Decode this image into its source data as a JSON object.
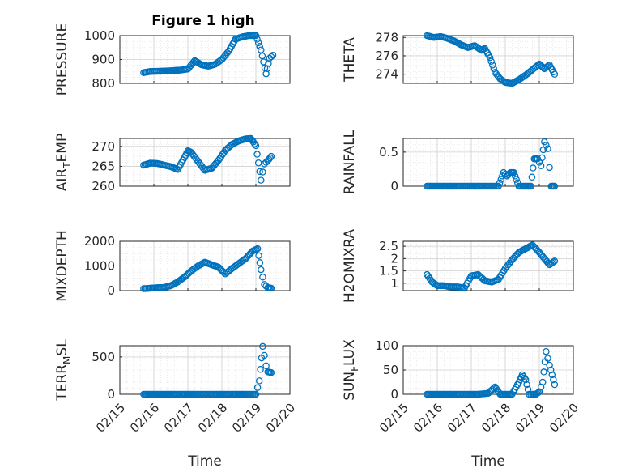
{
  "figure": {
    "title": "Figure 1 high",
    "marker_color": "#0072BD"
  },
  "chart_data": [
    {
      "type": "scatter",
      "ylabel": "PRESSURE",
      "xlabel": "",
      "title": "Figure 1 high",
      "ylim": [
        800,
        1000
      ],
      "yticks": [
        800,
        900,
        1000
      ],
      "ytick_labels": [
        "800",
        "900",
        "1000"
      ],
      "xlim": [
        0,
        5
      ],
      "xticks": [
        0,
        1,
        2,
        3,
        4,
        5
      ],
      "xtick_labels": [
        "",
        "",
        "",
        "",
        "",
        ""
      ],
      "grid": true,
      "x": [
        0.7,
        0.9,
        1.2,
        1.5,
        1.8,
        2.0,
        2.2,
        2.4,
        2.6,
        2.8,
        3.0,
        3.2,
        3.4,
        3.6,
        3.8,
        4.0,
        4.15,
        4.3,
        4.4,
        4.5
      ],
      "y": [
        845,
        850,
        851,
        853,
        856,
        860,
        895,
        878,
        872,
        880,
        900,
        935,
        985,
        995,
        1000,
        1000,
        940,
        840,
        905,
        918
      ]
    },
    {
      "type": "scatter",
      "ylabel": "THETA",
      "xlabel": "",
      "ylim": [
        273,
        278.2
      ],
      "yticks": [
        274,
        276,
        278
      ],
      "ytick_labels": [
        "274",
        "276",
        "278"
      ],
      "xlim": [
        0,
        5
      ],
      "xticks": [
        0,
        1,
        2,
        3,
        4,
        5
      ],
      "xtick_labels": [
        "",
        "",
        "",
        "",
        "",
        ""
      ],
      "grid": true,
      "x": [
        0.7,
        0.9,
        1.1,
        1.3,
        1.5,
        1.7,
        1.9,
        2.1,
        2.3,
        2.4,
        2.55,
        2.7,
        2.85,
        3.0,
        3.2,
        3.4,
        3.6,
        3.8,
        4.0,
        4.15,
        4.3,
        4.45
      ],
      "y": [
        278.2,
        278,
        278.1,
        277.9,
        277.6,
        277.2,
        276.9,
        277.1,
        276.6,
        276.8,
        275.8,
        274.2,
        273.5,
        273.1,
        273.0,
        273.4,
        273.9,
        274.5,
        275.1,
        274.6,
        275.0,
        274.0
      ]
    },
    {
      "type": "scatter",
      "ylabel": "AIR_TEMP",
      "ylabel_main": "AIR",
      "ylabel_sub": "T",
      "ylabel_rest": "EMP",
      "xlabel": "",
      "ylim": [
        260,
        272
      ],
      "yticks": [
        260,
        265,
        270
      ],
      "ytick_labels": [
        "260",
        "265",
        "270"
      ],
      "xlim": [
        0,
        5
      ],
      "xticks": [
        0,
        1,
        2,
        3,
        4,
        5
      ],
      "xtick_labels": [
        "",
        "",
        "",
        "",
        "",
        ""
      ],
      "grid": true,
      "x": [
        0.7,
        0.9,
        1.1,
        1.3,
        1.5,
        1.7,
        1.9,
        2.0,
        2.1,
        2.3,
        2.5,
        2.7,
        2.9,
        3.1,
        3.3,
        3.5,
        3.7,
        3.85,
        4.0,
        4.15,
        4.25,
        4.35,
        4.45
      ],
      "y": [
        265.3,
        265.8,
        265.7,
        265.3,
        264.9,
        264.2,
        267.2,
        268.9,
        268.5,
        266.2,
        264.0,
        264.5,
        266.5,
        269.0,
        270.5,
        271.4,
        271.9,
        272.0,
        270.2,
        261.5,
        265.6,
        266.4,
        267.5
      ]
    },
    {
      "type": "scatter",
      "ylabel": "RAINFALL",
      "xlabel": "",
      "ylim": [
        0,
        0.7
      ],
      "yticks": [
        0,
        0.5
      ],
      "ytick_labels": [
        "0",
        "0.5"
      ],
      "xlim": [
        0,
        5
      ],
      "xticks": [
        0,
        1,
        2,
        3,
        4,
        5
      ],
      "xtick_labels": [
        "",
        "",
        "",
        "",
        "",
        ""
      ],
      "grid": true,
      "x": [
        0.7,
        1.0,
        1.3,
        1.6,
        1.9,
        2.2,
        2.5,
        2.8,
        2.95,
        3.05,
        3.15,
        3.25,
        3.4,
        3.6,
        3.75,
        3.85,
        3.95,
        4.05,
        4.15,
        4.25,
        4.35,
        4.45
      ],
      "y": [
        0,
        0,
        0,
        0,
        0,
        0,
        0,
        0,
        0.2,
        0.15,
        0.2,
        0.2,
        0,
        0,
        0,
        0.4,
        0.4,
        0.3,
        0.65,
        0.55,
        0,
        0
      ]
    },
    {
      "type": "scatter",
      "ylabel": "MIXDEPTH",
      "xlabel": "",
      "ylim": [
        0,
        2000
      ],
      "yticks": [
        0,
        1000,
        2000
      ],
      "ytick_labels": [
        "0",
        "1000",
        "2000"
      ],
      "xlim": [
        0,
        5
      ],
      "xticks": [
        0,
        1,
        2,
        3,
        4,
        5
      ],
      "xtick_labels": [
        "",
        "",
        "",
        "",
        "",
        ""
      ],
      "grid": true,
      "x": [
        0.7,
        0.9,
        1.1,
        1.3,
        1.5,
        1.7,
        1.9,
        2.1,
        2.3,
        2.5,
        2.7,
        2.9,
        3.1,
        3.3,
        3.5,
        3.7,
        3.9,
        4.05,
        4.15,
        4.25,
        4.35,
        4.45
      ],
      "y": [
        80,
        100,
        120,
        130,
        200,
        350,
        550,
        800,
        1000,
        1150,
        1050,
        950,
        680,
        900,
        1100,
        1300,
        1600,
        1700,
        850,
        250,
        120,
        100
      ]
    },
    {
      "type": "scatter",
      "ylabel": "H2OMIXRA",
      "xlabel": "",
      "ylim": [
        0.7,
        2.7
      ],
      "yticks": [
        1,
        1.5,
        2,
        2.5
      ],
      "ytick_labels": [
        "1",
        "1.5",
        "2",
        "2.5"
      ],
      "xlim": [
        0,
        5
      ],
      "xticks": [
        0,
        1,
        2,
        3,
        4,
        5
      ],
      "xtick_labels": [
        "",
        "",
        "",
        "",
        "",
        ""
      ],
      "grid": true,
      "x": [
        0.7,
        0.85,
        1.0,
        1.2,
        1.4,
        1.6,
        1.8,
        2.0,
        2.2,
        2.4,
        2.6,
        2.8,
        3.0,
        3.2,
        3.4,
        3.6,
        3.8,
        4.0,
        4.15,
        4.3,
        4.45
      ],
      "y": [
        1.35,
        1.05,
        0.9,
        0.9,
        0.85,
        0.85,
        0.8,
        1.3,
        1.35,
        1.1,
        1.05,
        1.15,
        1.6,
        1.95,
        2.25,
        2.4,
        2.55,
        2.25,
        2.0,
        1.75,
        1.9
      ]
    },
    {
      "type": "scatter",
      "ylabel": "TERR_MSL",
      "ylabel_main": "TERR",
      "ylabel_sub": "M",
      "ylabel_rest": "SL",
      "xlabel": "Time",
      "ylim": [
        0,
        650
      ],
      "yticks": [
        0,
        500
      ],
      "ytick_labels": [
        "0",
        "500"
      ],
      "xlim": [
        0,
        5
      ],
      "xticks": [
        0,
        1,
        2,
        3,
        4,
        5
      ],
      "xtick_labels": [
        "02/15",
        "02/16",
        "02/17",
        "02/18",
        "02/19",
        "02/20"
      ],
      "grid": true,
      "x": [
        0.7,
        1.0,
        1.3,
        1.6,
        1.9,
        2.2,
        2.5,
        2.8,
        3.1,
        3.4,
        3.7,
        4.0,
        4.1,
        4.2,
        4.25,
        4.3,
        4.35,
        4.45
      ],
      "y": [
        0,
        0,
        0,
        0,
        0,
        0,
        0,
        0,
        0,
        0,
        0,
        0,
        180,
        640,
        520,
        380,
        300,
        290
      ]
    },
    {
      "type": "scatter",
      "ylabel": "SUN_FLUX",
      "ylabel_main": "SUN",
      "ylabel_sub": "F",
      "ylabel_rest": "LUX",
      "xlabel": "Time",
      "ylim": [
        0,
        100
      ],
      "yticks": [
        0,
        50,
        100
      ],
      "ytick_labels": [
        "0",
        "50",
        "100"
      ],
      "xlim": [
        0,
        5
      ],
      "xticks": [
        0,
        1,
        2,
        3,
        4,
        5
      ],
      "xtick_labels": [
        "02/15",
        "02/16",
        "02/17",
        "02/18",
        "02/19",
        "02/20"
      ],
      "grid": true,
      "x": [
        0.7,
        1.0,
        1.3,
        1.6,
        1.9,
        2.2,
        2.5,
        2.7,
        2.85,
        3.0,
        3.2,
        3.4,
        3.5,
        3.6,
        3.7,
        3.8,
        3.9,
        4.0,
        4.1,
        4.2,
        4.3,
        4.45
      ],
      "y": [
        0,
        0,
        0,
        0,
        0,
        0,
        2,
        15,
        0,
        0,
        0,
        25,
        40,
        30,
        0,
        0,
        0,
        5,
        25,
        88,
        60,
        20
      ]
    }
  ]
}
